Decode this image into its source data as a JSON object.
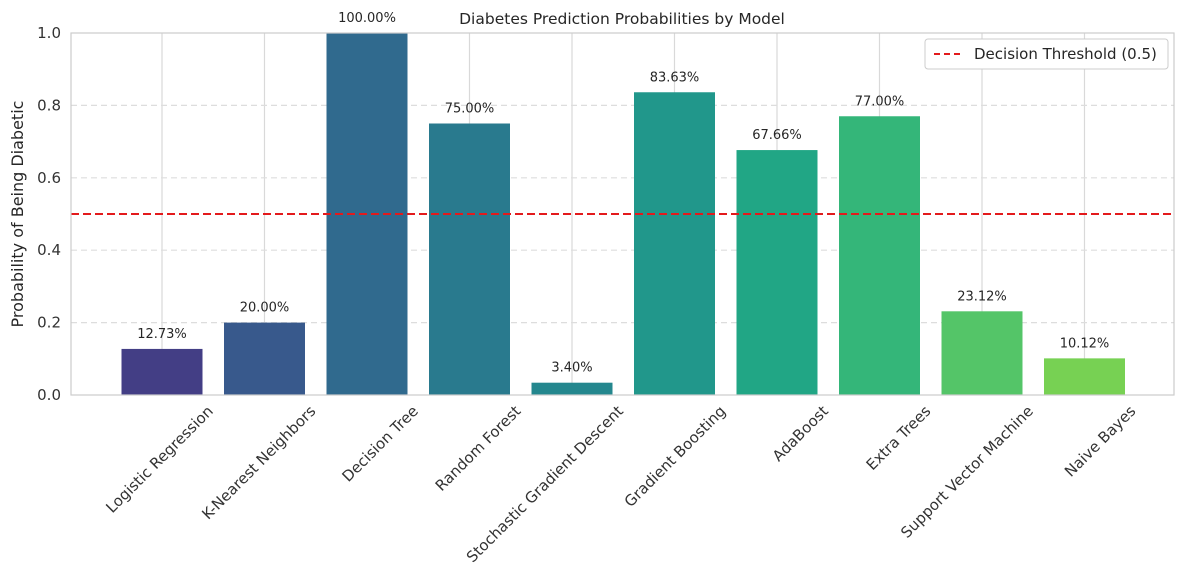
{
  "chart_data": {
    "type": "bar",
    "title": "Diabetes Prediction Probabilities by Model",
    "xlabel": "",
    "ylabel": "Probability of Being Diabetic",
    "ylim": [
      0,
      1.0
    ],
    "yticks": [
      "0.0",
      "0.2",
      "0.4",
      "0.6",
      "0.8",
      "1.0"
    ],
    "categories": [
      "Logistic Regression",
      "K-Nearest Neighbors",
      "Decision Tree",
      "Random Forest",
      "Stochastic Gradient Descent",
      "Gradient Boosting",
      "AdaBoost",
      "Extra Trees",
      "Support Vector Machine",
      "Naive Bayes"
    ],
    "values": [
      0.1273,
      0.2,
      1.0,
      0.75,
      0.034,
      0.8363,
      0.6766,
      0.77,
      0.2312,
      0.1012
    ],
    "value_labels": [
      "12.73%",
      "20.00%",
      "100.00%",
      "75.00%",
      "3.40%",
      "83.63%",
      "67.66%",
      "77.00%",
      "23.12%",
      "10.12%"
    ],
    "colors": [
      "#433e85",
      "#38598c",
      "#306a8e",
      "#297a8e",
      "#24878e",
      "#21978b",
      "#21a685",
      "#34b679",
      "#54c568",
      "#77d153"
    ],
    "threshold": {
      "value": 0.5,
      "label": "Decision Threshold (0.5)",
      "color": "#e31a1c",
      "style": "dashed"
    },
    "legend_position": "top-right",
    "grid": true
  }
}
